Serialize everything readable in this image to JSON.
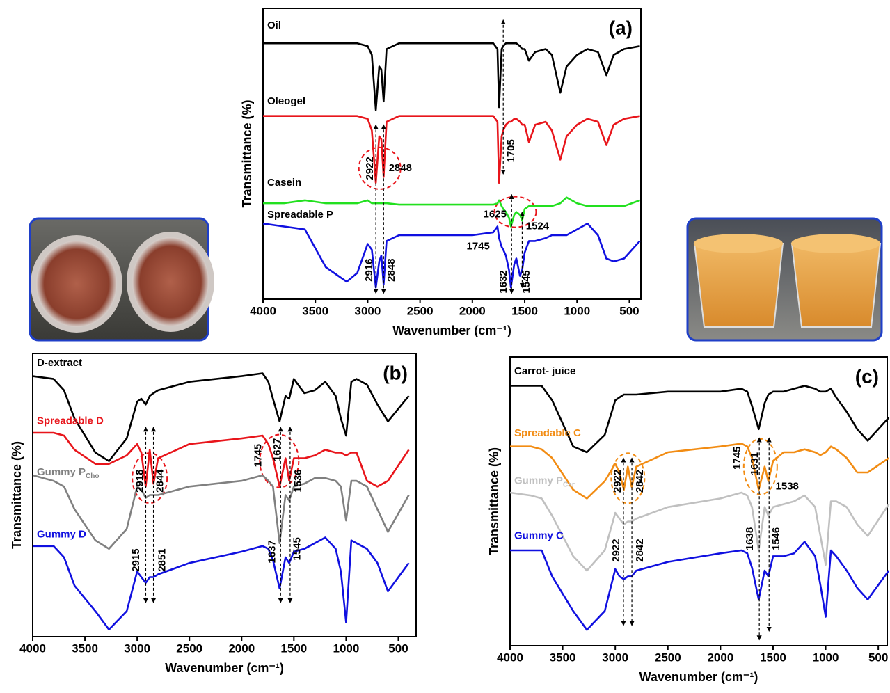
{
  "chart_data": [
    {
      "type": "line",
      "title": "(a)",
      "xlabel": "Wavenumber (cm⁻¹)",
      "ylabel": "Transmittance (%)",
      "xlim": [
        4000,
        390
      ],
      "ylim": [
        0,
        100
      ],
      "xticks": [
        4000,
        3500,
        3000,
        2500,
        2000,
        1500,
        1000,
        500
      ],
      "legend_colored": false,
      "x": [
        4000,
        3800,
        3600,
        3400,
        3200,
        3100,
        3000,
        2960,
        2922,
        2890,
        2870,
        2848,
        2820,
        2700,
        2400,
        2000,
        1800,
        1760,
        1745,
        1720,
        1705,
        1680,
        1650,
        1632,
        1600,
        1580,
        1545,
        1524,
        1500,
        1460,
        1400,
        1300,
        1240,
        1160,
        1100,
        1000,
        900,
        800,
        720,
        650,
        550,
        400
      ],
      "series": [
        {
          "name": "Oil",
          "color": "#000000",
          "values": [
            88,
            88,
            88,
            88,
            88,
            88,
            87,
            84,
            65,
            80,
            79,
            68,
            86,
            88,
            88,
            88,
            88,
            86,
            66,
            86,
            87,
            88,
            88,
            88,
            88,
            88,
            87,
            86,
            86,
            82,
            85,
            86,
            84,
            71,
            80,
            84,
            86,
            85,
            77,
            84,
            86,
            87
          ]
        },
        {
          "name": "Oleogel",
          "color": "#e8151b",
          "values": [
            63,
            63,
            63,
            63,
            63,
            63,
            62,
            58,
            40,
            56,
            55,
            42,
            61,
            63,
            63,
            63,
            63,
            61,
            40,
            56,
            58,
            60,
            61,
            61,
            62,
            62,
            61,
            60,
            60,
            54,
            60,
            61,
            58,
            48,
            56,
            60,
            62,
            61,
            53,
            60,
            62,
            63
          ]
        },
        {
          "name": "Casein",
          "color": "#22e01f",
          "values": [
            33,
            33,
            34,
            33,
            33,
            33,
            34,
            33,
            33,
            33,
            33,
            33,
            33,
            32.5,
            32.5,
            32.5,
            32.5,
            33,
            34,
            32,
            31,
            30,
            28,
            25,
            29,
            30,
            29,
            27,
            31,
            32,
            32,
            32,
            32,
            33,
            35,
            33,
            32,
            32,
            32,
            32,
            32,
            34
          ]
        },
        {
          "name": "Spreadable P",
          "color": "#1010e0",
          "values": [
            26,
            25,
            24,
            11,
            6,
            9,
            19,
            17,
            4,
            13,
            15,
            5,
            20,
            22,
            22,
            22,
            23,
            25,
            21,
            18,
            17,
            15,
            10,
            4,
            12,
            14,
            8,
            10,
            16,
            20,
            20,
            21,
            22,
            22,
            22,
            24,
            26,
            22,
            14,
            13,
            14,
            20
          ]
        }
      ],
      "annotations": [
        {
          "x": 2922,
          "label": "2922"
        },
        {
          "x": 2848,
          "label": "2848"
        },
        {
          "x": 1705,
          "label": "1705"
        },
        {
          "x": 1625,
          "label": "1625"
        },
        {
          "x": 1524,
          "label": "1524"
        },
        {
          "x": 1745,
          "label": "1745"
        },
        {
          "x": 2916,
          "label": "2916"
        },
        {
          "x": 2848,
          "label": "2848"
        },
        {
          "x": 1632,
          "label": "1632"
        },
        {
          "x": 1545,
          "label": "1545"
        }
      ]
    },
    {
      "type": "line",
      "title": "(b)",
      "xlabel": "Wavenumber (cm⁻¹)",
      "ylabel": "Transmittance (%)",
      "xlim": [
        4000,
        330
      ],
      "ylim": [
        0,
        100
      ],
      "xticks": [
        4000,
        3500,
        3000,
        2500,
        2000,
        1500,
        1000,
        500
      ],
      "legend_colored": true,
      "x": [
        4000,
        3800,
        3700,
        3600,
        3400,
        3270,
        3100,
        3000,
        2960,
        2918,
        2880,
        2844,
        2800,
        2500,
        2000,
        1800,
        1745,
        1700,
        1637,
        1580,
        1545,
        1500,
        1400,
        1300,
        1200,
        1100,
        1050,
        1000,
        950,
        900,
        800,
        700,
        600,
        400
      ],
      "series": [
        {
          "name": "D-extract",
          "color": "#000000",
          "values": [
            92,
            91,
            87,
            77,
            65,
            62,
            70,
            83,
            84,
            82,
            85,
            86,
            87,
            90,
            92,
            93,
            90,
            84,
            76,
            85,
            84,
            91,
            86,
            87,
            90,
            85,
            77,
            71,
            90,
            91,
            89,
            82,
            76,
            85
          ]
        },
        {
          "name": "Spreadable D",
          "color": "#e8151b",
          "values": [
            72,
            72,
            71,
            66,
            61,
            61,
            64,
            68,
            65,
            53,
            66,
            54,
            63,
            68,
            70,
            71,
            68,
            63,
            53,
            63,
            55,
            63,
            63,
            64,
            66,
            65,
            65,
            64,
            65,
            65,
            55,
            53,
            55,
            66
          ]
        },
        {
          "name": "Gummy P",
          "subscript": "Cho",
          "color": "#808080",
          "values": [
            57,
            55,
            53,
            45,
            34,
            31,
            38,
            53,
            52,
            49,
            50,
            50,
            50,
            53,
            55,
            57,
            55,
            53,
            33,
            50,
            48,
            53,
            54,
            56,
            56,
            55,
            53,
            41,
            55,
            55,
            53,
            45,
            37,
            50
          ]
        },
        {
          "name": "Gummy D",
          "color": "#1010e0",
          "values": [
            32,
            32,
            28,
            18,
            9,
            2.5,
            9,
            23,
            21,
            19,
            21,
            21,
            22,
            26,
            30,
            32,
            31,
            27,
            17,
            28,
            26,
            30,
            31,
            33,
            35,
            31,
            23,
            5,
            34,
            33,
            31,
            26,
            16,
            26
          ]
        }
      ],
      "annotations": [
        {
          "x": 2918,
          "label": "2918"
        },
        {
          "x": 2844,
          "label": "2844"
        },
        {
          "x": 1745,
          "label": "1745"
        },
        {
          "x": 1627,
          "label": "1627"
        },
        {
          "x": 1536,
          "label": "1536"
        },
        {
          "x": 2915,
          "label": "2915"
        },
        {
          "x": 2851,
          "label": "2851"
        },
        {
          "x": 1637,
          "label": "1637"
        },
        {
          "x": 1545,
          "label": "1545"
        }
      ]
    },
    {
      "type": "line",
      "title": "(c)",
      "xlabel": "Wavenumber (cm⁻¹)",
      "ylabel": "Transmittance (%)",
      "xlim": [
        4000,
        415
      ],
      "ylim": [
        0,
        100
      ],
      "xticks": [
        4000,
        3500,
        3000,
        2500,
        2000,
        1500,
        1000,
        500
      ],
      "legend_colored": true,
      "x": [
        4000,
        3800,
        3700,
        3600,
        3400,
        3270,
        3100,
        3000,
        2960,
        2918,
        2880,
        2844,
        2800,
        2500,
        2000,
        1800,
        1745,
        1700,
        1637,
        1580,
        1545,
        1500,
        1400,
        1300,
        1200,
        1100,
        1050,
        1000,
        950,
        900,
        800,
        700,
        600,
        400
      ],
      "series": [
        {
          "name": "Carrot- juice",
          "color": "#000000",
          "values": [
            90,
            90,
            90,
            85,
            69,
            67,
            73,
            85,
            86,
            87,
            87,
            87,
            87,
            88,
            88,
            89,
            88,
            83,
            75,
            84,
            87,
            88,
            88,
            89,
            90,
            89,
            88,
            88,
            89,
            86,
            81,
            75,
            71,
            79
          ]
        },
        {
          "name": "Spreadable C",
          "color": "#f28c13",
          "values": [
            69,
            69,
            68,
            65,
            54,
            51,
            57,
            63,
            60,
            54,
            62,
            55,
            62,
            67,
            69,
            70,
            69,
            65,
            54,
            62,
            57,
            64,
            67,
            67,
            68,
            67,
            66,
            67,
            69,
            68,
            65,
            60,
            60,
            65
          ]
        },
        {
          "name": "Gummy P",
          "subscript": "Car",
          "color": "#c0c0c0",
          "values": [
            53,
            52,
            51,
            45,
            31,
            26,
            33,
            46,
            44,
            42,
            43,
            43,
            44,
            48,
            51,
            53,
            52,
            48,
            33,
            48,
            45,
            48,
            49,
            50,
            52,
            48,
            38,
            28,
            50,
            50,
            48,
            42,
            38,
            49
          ]
        },
        {
          "name": "Gummy C",
          "color": "#1010e0",
          "values": [
            33,
            33,
            33,
            24,
            12,
            5.5,
            12,
            26.5,
            24,
            23,
            24,
            24,
            26,
            29,
            32,
            33,
            32,
            27,
            16,
            26,
            24,
            31,
            31,
            32,
            36,
            31,
            21,
            10,
            33,
            31,
            26,
            20,
            16,
            26
          ]
        }
      ],
      "annotations": [
        {
          "x": 2922,
          "label": "2922"
        },
        {
          "x": 2842,
          "label": "2842"
        },
        {
          "x": 1745,
          "label": "1745"
        },
        {
          "x": 1631,
          "label": "1631"
        },
        {
          "x": 1538,
          "label": "1538"
        },
        {
          "x": 2922,
          "label": "2922"
        },
        {
          "x": 2842,
          "label": "2842"
        },
        {
          "x": 1638,
          "label": "1638"
        },
        {
          "x": 1546,
          "label": "1546"
        }
      ]
    }
  ]
}
